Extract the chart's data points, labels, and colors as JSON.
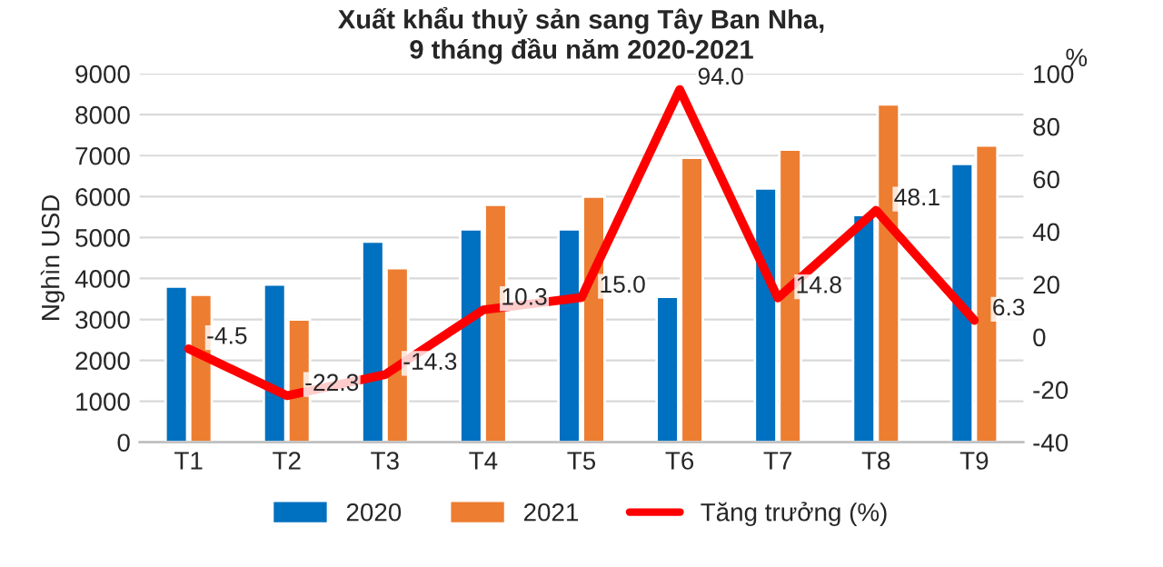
{
  "chart_data": {
    "type": "bar",
    "title": "Xuất khẩu thuỷ sản sang Tây Ban Nha,\n9 tháng đầu năm 2020-2021",
    "ylabel": "Nghìn USD",
    "y2label": "%",
    "categories": [
      "T1",
      "T2",
      "T3",
      "T4",
      "T5",
      "T6",
      "T7",
      "T8",
      "T9"
    ],
    "series": [
      {
        "name": "2020",
        "color": "#0070c0",
        "values": [
          3800,
          3850,
          4900,
          5200,
          5200,
          3550,
          6200,
          5550,
          6800
        ]
      },
      {
        "name": "2021",
        "color": "#ed7d31",
        "values": [
          3600,
          3000,
          4250,
          5800,
          6000,
          6950,
          7150,
          8250,
          7250
        ]
      },
      {
        "name": "Tăng trưởng (%)",
        "type": "line",
        "axis": "y2",
        "color": "#ff0000",
        "values": [
          -4.5,
          -22.3,
          -14.3,
          10.3,
          15.0,
          94.0,
          14.8,
          48.1,
          6.3
        ],
        "value_labels": [
          "-4.5",
          "-22.3",
          "-14.3",
          "10.3",
          "15.0",
          "94.0",
          "14.8",
          "48.1",
          "6.3"
        ]
      }
    ],
    "ylim": [
      0,
      9000
    ],
    "yticks": [
      0,
      1000,
      2000,
      3000,
      4000,
      5000,
      6000,
      7000,
      8000,
      9000
    ],
    "y2lim": [
      -40,
      100
    ],
    "y2ticks": [
      -40,
      -20,
      0,
      20,
      40,
      60,
      80,
      100
    ],
    "grid": "y",
    "legend": "bottom"
  }
}
